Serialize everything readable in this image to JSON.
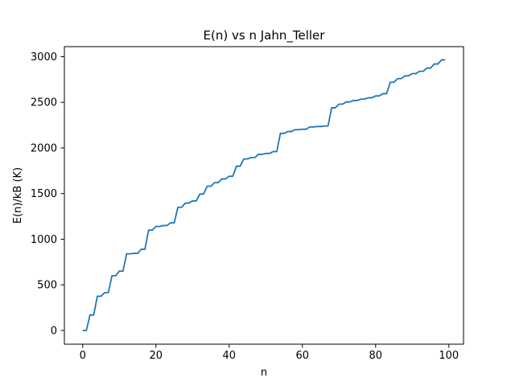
{
  "chart_data": {
    "type": "line",
    "title": "E(n) vs n Jahn_Teller",
    "xlabel": "n",
    "ylabel": "E(n)/kB (K)",
    "xlim": [
      -5,
      104
    ],
    "ylim": [
      -150,
      3110
    ],
    "xticks": [
      0,
      20,
      40,
      60,
      80,
      100
    ],
    "yticks": [
      0,
      500,
      1000,
      1500,
      2000,
      2500,
      3000
    ],
    "grid": false,
    "legend": "none",
    "series": [
      {
        "color": "#1f77b4",
        "x": [
          0,
          1,
          2,
          3,
          4,
          5,
          6,
          7,
          8,
          9,
          10,
          11,
          12,
          13,
          14,
          15,
          16,
          17,
          18,
          19,
          20,
          21,
          22,
          23,
          24,
          25,
          26,
          27,
          28,
          29,
          30,
          31,
          32,
          33,
          34,
          35,
          36,
          37,
          38,
          39,
          40,
          41,
          42,
          43,
          44,
          45,
          46,
          47,
          48,
          49,
          50,
          51,
          52,
          53,
          54,
          55,
          56,
          57,
          58,
          59,
          60,
          61,
          62,
          63,
          64,
          65,
          66,
          67,
          68,
          69,
          70,
          71,
          72,
          73,
          74,
          75,
          76,
          77,
          78,
          79,
          80,
          81,
          82,
          83,
          84,
          85,
          86,
          87,
          88,
          89,
          90,
          91,
          92,
          93,
          94,
          95,
          96,
          97,
          98,
          99
        ],
        "y": [
          0,
          0,
          170,
          170,
          375,
          375,
          415,
          415,
          600,
          600,
          650,
          650,
          840,
          840,
          845,
          845,
          890,
          890,
          1100,
          1100,
          1140,
          1140,
          1150,
          1150,
          1180,
          1180,
          1350,
          1350,
          1395,
          1395,
          1420,
          1420,
          1495,
          1495,
          1580,
          1580,
          1620,
          1620,
          1660,
          1660,
          1690,
          1690,
          1800,
          1800,
          1880,
          1880,
          1895,
          1895,
          1930,
          1930,
          1940,
          1940,
          1960,
          1960,
          2160,
          2160,
          2180,
          2180,
          2200,
          2200,
          2205,
          2205,
          2230,
          2230,
          2235,
          2235,
          2240,
          2240,
          2440,
          2440,
          2480,
          2480,
          2505,
          2505,
          2520,
          2520,
          2535,
          2535,
          2550,
          2550,
          2570,
          2570,
          2595,
          2595,
          2720,
          2720,
          2760,
          2760,
          2790,
          2790,
          2815,
          2815,
          2840,
          2840,
          2875,
          2875,
          2920,
          2920,
          2965,
          2965
        ]
      }
    ]
  }
}
